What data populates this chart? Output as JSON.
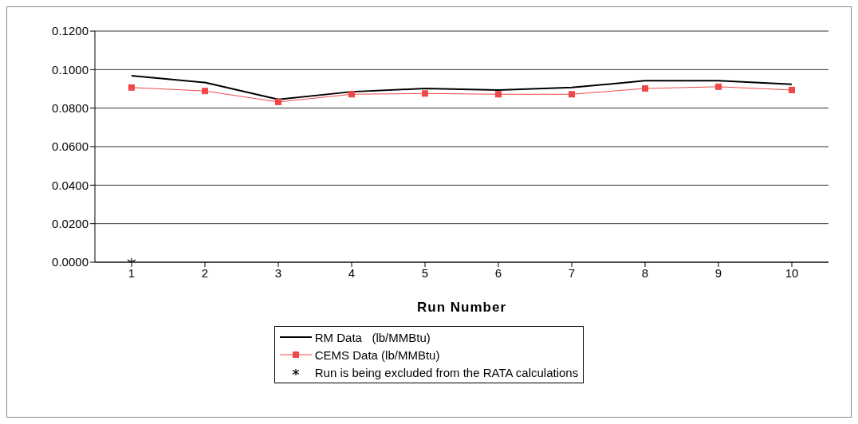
{
  "chart_data": {
    "type": "line",
    "xlabel": "Run Number",
    "categories": [
      "1",
      "2",
      "3",
      "4",
      "5",
      "6",
      "7",
      "8",
      "9",
      "10"
    ],
    "series": [
      {
        "name": "RM Data   (lb/MMBtu)",
        "color": "#000000",
        "marker": "none",
        "values": [
          0.0968,
          0.0933,
          0.0845,
          0.0885,
          0.0902,
          0.0894,
          0.0907,
          0.0942,
          0.0942,
          0.0924
        ]
      },
      {
        "name": "CEMS Data (lb/MMBtu)",
        "color": "#f04848",
        "marker": "square",
        "values": [
          0.0907,
          0.0889,
          0.0832,
          0.0872,
          0.0876,
          0.0872,
          0.0872,
          0.0902,
          0.0911,
          0.0894
        ]
      },
      {
        "name": "Run is being excluded from the RATA calculations",
        "type": "scatter",
        "color": "#000000",
        "marker": "cross",
        "x": [
          "1"
        ],
        "values": [
          0
        ]
      }
    ],
    "ylim": [
      0,
      0.12
    ],
    "yticks": [
      {
        "value": 0,
        "label": "0.0000"
      },
      {
        "value": 0.02,
        "label": "0.0200"
      },
      {
        "value": 0.04,
        "label": "0.0400"
      },
      {
        "value": 0.06,
        "label": "0.0600"
      },
      {
        "value": 0.08,
        "label": "0.0800"
      },
      {
        "value": 0.1,
        "label": "0.1000"
      },
      {
        "value": 0.12,
        "label": "0.1200"
      }
    ],
    "grid": "y",
    "legend": "bottom"
  }
}
